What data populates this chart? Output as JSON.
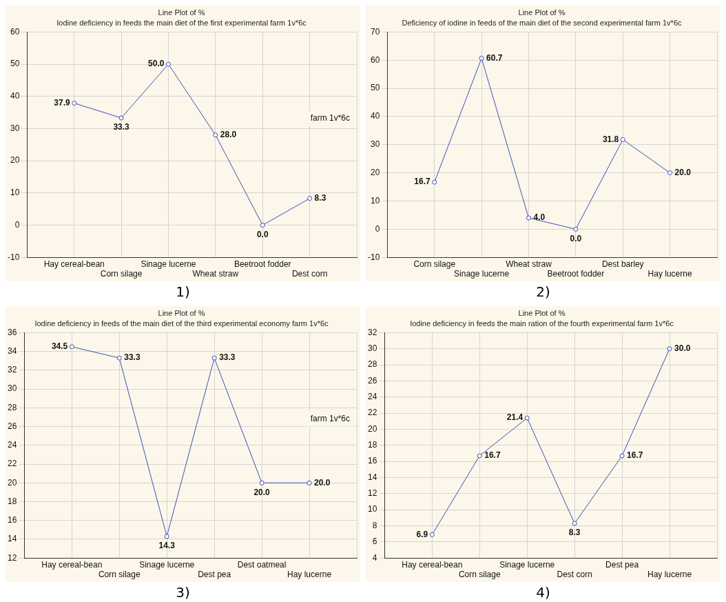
{
  "chart_data": [
    {
      "type": "line",
      "title": "Line Plot of %",
      "subtitle": "Iodine deficiency in feeds the main diet of the first experimental farm 1v*6c",
      "categories": [
        "Hay cereal-bean",
        "Corn silage",
        "Sinage lucerne",
        "Wheat straw",
        "Beetroot fodder",
        "Dest corn"
      ],
      "series": [
        {
          "color": "#3b4fb8",
          "values": [
            37.9,
            33.3,
            50,
            28,
            0,
            8.3
          ],
          "value_labels": [
            "37.9",
            "33.3",
            "50.0",
            "28.0",
            "0.0",
            "8.3"
          ]
        }
      ],
      "ylim": [
        -10,
        60
      ],
      "yticks": [
        -10,
        0,
        10,
        20,
        30,
        40,
        50,
        60
      ],
      "grid": true,
      "marker": "circle",
      "legend": false,
      "annotations": [
        "farm 1v*6c",
        "1)"
      ]
    },
    {
      "type": "line",
      "title": "Line Plot of %",
      "subtitle": "Deficiency of iodine in feeds of the main diet of the second experimental farm 1v*6c",
      "categories": [
        "Corn silage",
        "Sinage lucerne",
        "Wheat straw",
        "Beetroot fodder",
        "Dest barley",
        "Hay lucerne"
      ],
      "series": [
        {
          "color": "#3b4fb8",
          "values": [
            16.7,
            60.7,
            4,
            0,
            31.8,
            20
          ],
          "value_labels": [
            "16.7",
            "60.7",
            "4.0",
            "0.0",
            "31.8",
            "20.0"
          ]
        }
      ],
      "ylim": [
        -10,
        70
      ],
      "yticks": [
        -10,
        0,
        10,
        20,
        30,
        40,
        50,
        60,
        70
      ],
      "grid": true,
      "marker": "circle",
      "legend": false,
      "annotations": [
        "2)"
      ]
    },
    {
      "type": "line",
      "title": "Line Plot of %",
      "subtitle": "Iodine deficiency in feeds of the main diet of the third experimental economy farm 1v*6c",
      "categories": [
        "Hay cereal-bean",
        "Corn silage",
        "Sinage lucerne",
        "Dest pea",
        "Dest oatmeal",
        "Hay lucerne"
      ],
      "series": [
        {
          "color": "#3b4fb8",
          "values": [
            34.5,
            33.3,
            14.3,
            33.3,
            20,
            20
          ],
          "value_labels": [
            "34.5",
            "33.3",
            "14.3",
            "33.3",
            "20.0",
            "20.0"
          ]
        }
      ],
      "ylim": [
        12,
        36
      ],
      "yticks": [
        12,
        14,
        16,
        18,
        20,
        22,
        24,
        26,
        28,
        30,
        32,
        34,
        36
      ],
      "grid": true,
      "marker": "circle",
      "legend": false,
      "annotations": [
        "farm 1v*6c",
        "3)"
      ]
    },
    {
      "type": "line",
      "title": "Line Plot of %",
      "subtitle": "Iodine deficiency in feeds the main ration of the fourth experimental farm 1v*6c",
      "categories": [
        "Hay cereal-bean",
        "Corn silage",
        "Sinage lucerne",
        "Dest corn",
        "Dest pea",
        "Hay lucerne"
      ],
      "series": [
        {
          "color": "#3b4fb8",
          "values": [
            6.9,
            16.7,
            21.4,
            8.3,
            16.7,
            30
          ],
          "value_labels": [
            "6.9",
            "16.7",
            "21.4",
            "8.3",
            "16.7",
            "30.0"
          ]
        }
      ],
      "ylim": [
        4,
        32
      ],
      "yticks": [
        4,
        6,
        8,
        10,
        12,
        14,
        16,
        18,
        20,
        22,
        24,
        26,
        28,
        30,
        32
      ],
      "grid": true,
      "marker": "circle",
      "legend": false,
      "annotations": [
        "4)"
      ]
    }
  ]
}
